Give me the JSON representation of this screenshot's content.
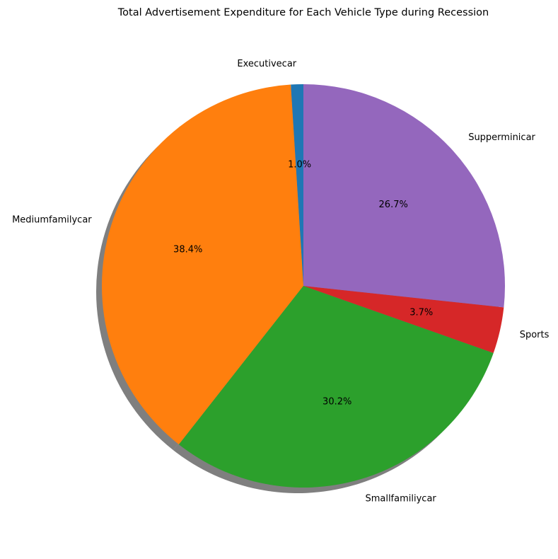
{
  "chart_data": {
    "type": "pie",
    "title": "Total Advertisement Expenditure for Each Vehicle Type during Recession",
    "labels": [
      "Executivecar",
      "Mediumfamilycar",
      "Smallfamiliycar",
      "Sports",
      "Supperminicar"
    ],
    "values": [
      1.0,
      38.4,
      30.2,
      3.7,
      26.7
    ],
    "value_labels": [
      "1.0%",
      "38.4%",
      "30.2%",
      "3.7%",
      "26.7%"
    ],
    "colors": [
      "#1f77b4",
      "#ff7f0e",
      "#2ca02c",
      "#d62728",
      "#9467bd"
    ],
    "start_angle_deg": 90,
    "direction": "counterclockwise",
    "shadow": true,
    "legend": "none"
  }
}
